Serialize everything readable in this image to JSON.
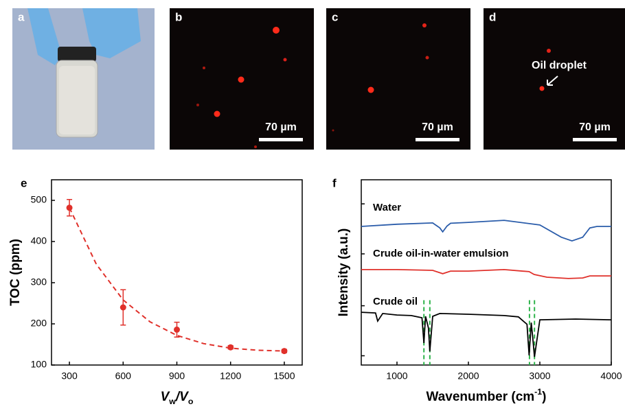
{
  "panels": [
    {
      "label": "a"
    },
    {
      "label": "b",
      "scale_bar": "70 µm"
    },
    {
      "label": "c",
      "scale_bar": "70 µm"
    },
    {
      "label": "d",
      "scale_bar": "70 µm"
    }
  ],
  "annotation": "Oil droplet",
  "chart_data": [
    {
      "type": "scatter",
      "label": "e",
      "y_label": "TOC (ppm)",
      "x_label": [
        {
          "text": "V"
        },
        {
          "text": "w",
          "sub": true
        },
        {
          "text": "/V"
        },
        {
          "text": "o",
          "sub": true
        }
      ],
      "x": [
        300,
        600,
        900,
        1200,
        1500
      ],
      "values": [
        482,
        240,
        186,
        143,
        134
      ],
      "errors": [
        20,
        43,
        18,
        4,
        4
      ],
      "color": "#e0302a",
      "fit": {
        "x": [
          300,
          450,
          600,
          750,
          900,
          1050,
          1200,
          1350,
          1500
        ],
        "y": [
          482,
          345,
          258,
          205,
          172,
          152,
          141,
          136,
          134
        ]
      },
      "xlim": [
        200,
        1600
      ],
      "xticks": [
        300,
        600,
        900,
        1200,
        1500
      ],
      "ylim": [
        100,
        550
      ],
      "yticks": [
        100,
        200,
        300,
        400,
        500
      ]
    },
    {
      "type": "line",
      "label": "f",
      "y_label": "Intensity (a.u.)",
      "x_label": [
        {
          "text": "Wavenumber (cm"
        },
        {
          "text": "-1",
          "sup": true
        },
        {
          "text": ")"
        }
      ],
      "xlim": [
        500,
        4000
      ],
      "xticks": [
        1000,
        2000,
        3000,
        4000
      ],
      "ylim": [
        0,
        100
      ],
      "series": [
        {
          "name": "Water",
          "color": "#2a5caa",
          "x": [
            500,
            1000,
            1500,
            1600,
            1640,
            1700,
            1750,
            2000,
            2500,
            3000,
            3300,
            3450,
            3600,
            3650,
            3700,
            3800,
            4000
          ],
          "values": [
            74.8,
            76,
            76.7,
            74,
            71.9,
            75,
            76.5,
            77,
            78.1,
            75.6,
            69,
            67,
            69,
            71.5,
            74,
            74.8,
            74.8
          ]
        },
        {
          "name": "Crude oil-in-water emulsion",
          "color": "#e0302a",
          "x": [
            500,
            1000,
            1500,
            1640,
            1750,
            2000,
            2500,
            2850,
            2920,
            3100,
            3400,
            3600,
            3700,
            4000
          ],
          "values": [
            51.5,
            51.5,
            51.1,
            49.3,
            50.7,
            50.7,
            51.5,
            50.4,
            48.9,
            47.4,
            46.7,
            47,
            48.1,
            48.1
          ]
        },
        {
          "name": "Crude oil",
          "color": "#000000",
          "x": [
            500,
            700,
            730,
            800,
            1000,
            1200,
            1350,
            1377,
            1400,
            1440,
            1460,
            1500,
            1600,
            2000,
            2500,
            2700,
            2820,
            2850,
            2880,
            2900,
            2925,
            3000,
            3500,
            4000
          ],
          "values": [
            28.5,
            28.1,
            23.7,
            27.8,
            27,
            26.7,
            25.5,
            11.9,
            26.3,
            20,
            7.4,
            26.3,
            27.8,
            27.4,
            26.7,
            26,
            22,
            5.2,
            22.9,
            15,
            4.4,
            24.4,
            24.8,
            24.4
          ]
        }
      ],
      "vlines": {
        "x": [
          1377,
          1460,
          2855,
          2925
        ],
        "color": "#2db34a"
      }
    }
  ]
}
